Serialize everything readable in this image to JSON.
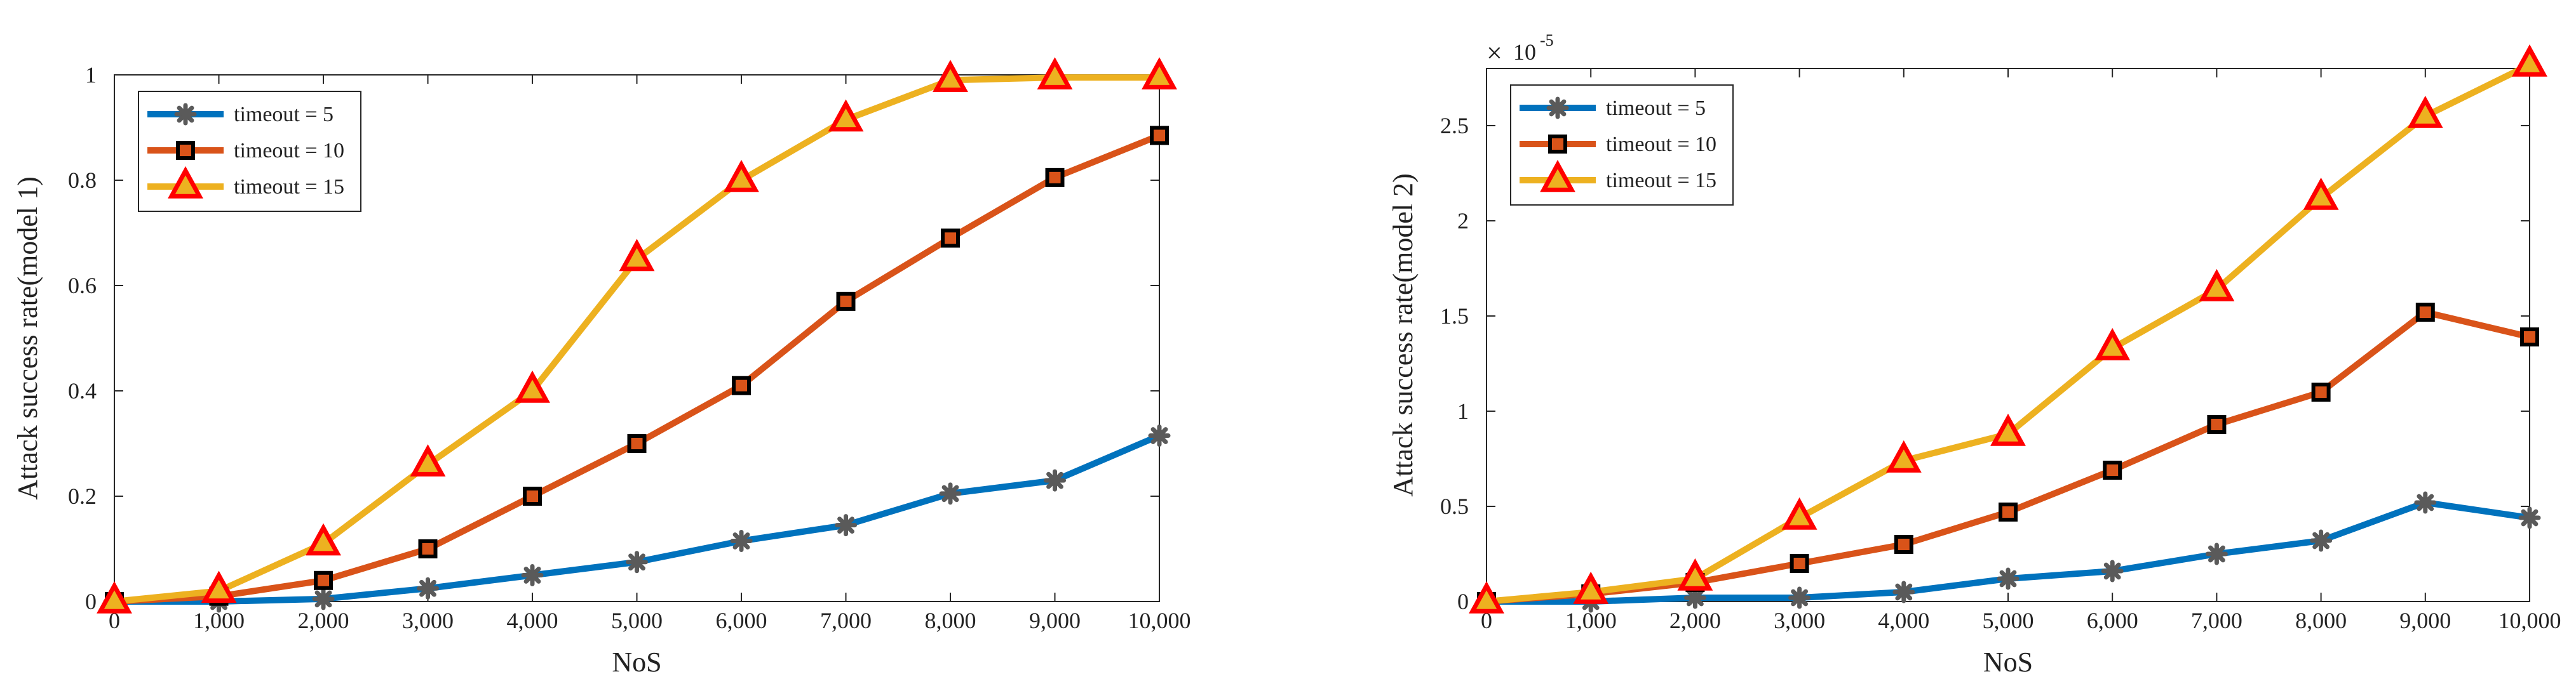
{
  "chart_data": [
    {
      "type": "line",
      "title": "",
      "xlabel": "NoS",
      "ylabel": "Attack success rate(model 1)",
      "x": [
        0,
        1000,
        2000,
        3000,
        4000,
        5000,
        6000,
        7000,
        8000,
        9000,
        10000
      ],
      "x_tick_labels": [
        "0",
        "1,000",
        "2,000",
        "3,000",
        "4,000",
        "5,000",
        "6,000",
        "7,000",
        "8,000",
        "9,000",
        "10,000"
      ],
      "xlim": [
        0,
        10000
      ],
      "ylim": [
        0,
        1
      ],
      "y_ticks": [
        0,
        0.2,
        0.4,
        0.6,
        0.8,
        1
      ],
      "y_tick_labels": [
        "0",
        "0.2",
        "0.4",
        "0.6",
        "0.8",
        "1"
      ],
      "exponent_label": "",
      "legend_position": "top-left",
      "series": [
        {
          "name": "timeout = 5",
          "color": "#0072BD",
          "marker": "asterisk",
          "values": [
            0,
            0,
            0.005,
            0.025,
            0.05,
            0.075,
            0.115,
            0.145,
            0.205,
            0.23,
            0.315
          ]
        },
        {
          "name": "timeout = 10",
          "color": "#D95319",
          "marker": "square",
          "values": [
            0,
            0.01,
            0.04,
            0.1,
            0.2,
            0.3,
            0.41,
            0.57,
            0.69,
            0.805,
            0.885
          ]
        },
        {
          "name": "timeout = 15",
          "color": "#EDB120",
          "marker": "triangle",
          "values": [
            0,
            0.02,
            0.11,
            0.26,
            0.4,
            0.65,
            0.8,
            0.915,
            0.99,
            0.995,
            0.995
          ]
        }
      ]
    },
    {
      "type": "line",
      "title": "",
      "xlabel": "NoS",
      "ylabel": "Attack success rate(model 2)",
      "x": [
        0,
        1000,
        2000,
        3000,
        4000,
        5000,
        6000,
        7000,
        8000,
        9000,
        10000
      ],
      "x_tick_labels": [
        "0",
        "1,000",
        "2,000",
        "3,000",
        "4,000",
        "5,000",
        "6,000",
        "7,000",
        "8,000",
        "9,000",
        "10,000"
      ],
      "xlim": [
        0,
        10000
      ],
      "ylim": [
        0,
        2.8
      ],
      "y_ticks": [
        0,
        0.5,
        1,
        1.5,
        2,
        2.5
      ],
      "y_tick_labels": [
        "0",
        "0.5",
        "1",
        "1.5",
        "2",
        "2.5"
      ],
      "exponent_label": "10",
      "exponent_power": "-5",
      "legend_position": "top-left",
      "series": [
        {
          "name": "timeout = 5",
          "color": "#0072BD",
          "marker": "asterisk",
          "values": [
            0,
            0,
            0.02,
            0.02,
            0.05,
            0.12,
            0.16,
            0.25,
            0.32,
            0.52,
            0.44
          ]
        },
        {
          "name": "timeout = 10",
          "color": "#D95319",
          "marker": "square",
          "values": [
            0,
            0.04,
            0.1,
            0.2,
            0.3,
            0.47,
            0.69,
            0.93,
            1.1,
            1.52,
            1.39
          ]
        },
        {
          "name": "timeout = 15",
          "color": "#EDB120",
          "marker": "triangle",
          "values": [
            0,
            0.05,
            0.12,
            0.44,
            0.74,
            0.88,
            1.33,
            1.64,
            2.12,
            2.55,
            2.82
          ]
        }
      ]
    }
  ]
}
